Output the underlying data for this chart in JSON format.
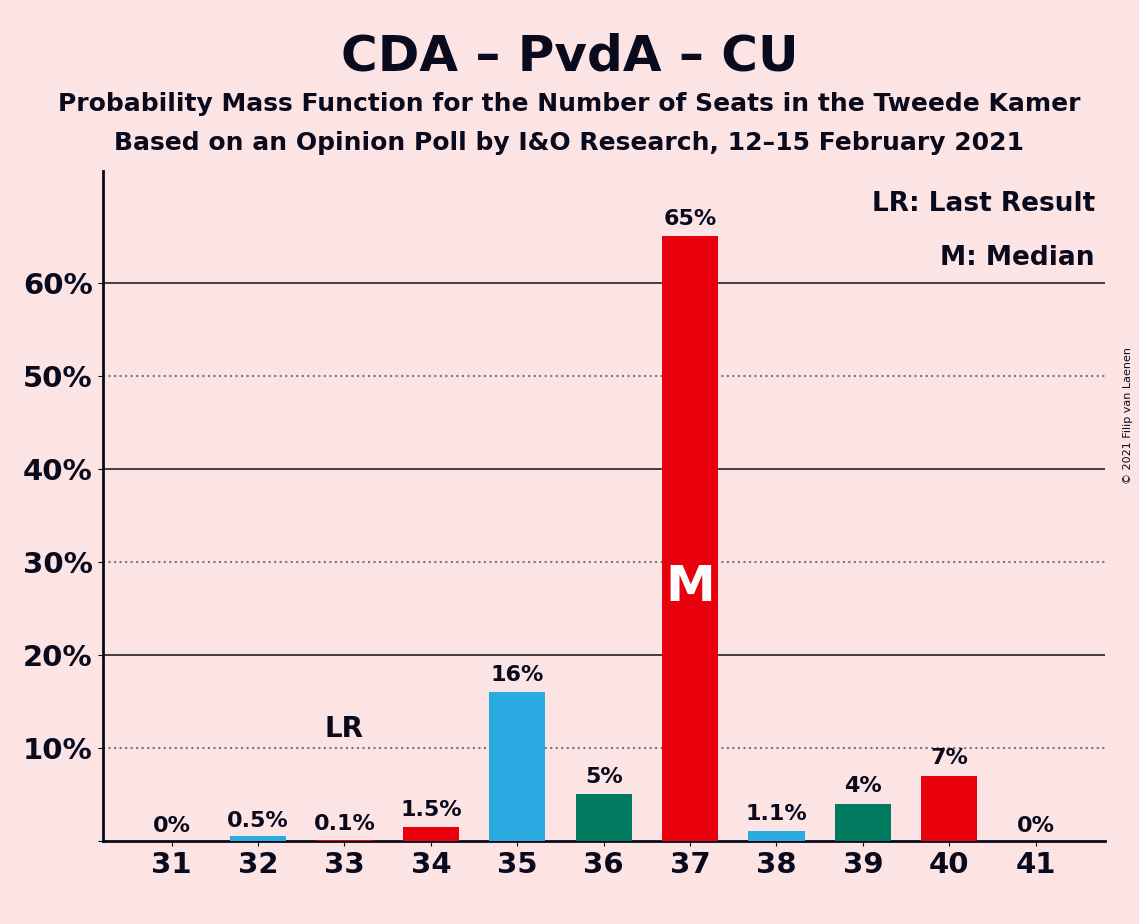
{
  "title": "CDA – PvdA – CU",
  "subtitle1": "Probability Mass Function for the Number of Seats in the Tweede Kamer",
  "subtitle2": "Based on an Opinion Poll by I&O Research, 12–15 February 2021",
  "copyright": "© 2021 Filip van Laenen",
  "seats": [
    31,
    32,
    33,
    34,
    35,
    36,
    37,
    38,
    39,
    40,
    41
  ],
  "probabilities": [
    0.0,
    0.5,
    0.1,
    1.5,
    16.0,
    5.0,
    65.0,
    1.1,
    4.0,
    7.0,
    0.0
  ],
  "bar_colors": [
    "#e8000d",
    "#29abe2",
    "#e8000d",
    "#e8000d",
    "#29abe2",
    "#007a5e",
    "#e8000d",
    "#29abe2",
    "#007a5e",
    "#e8000d",
    "#e8000d"
  ],
  "labels": [
    "0%",
    "0.5%",
    "0.1%",
    "1.5%",
    "16%",
    "5%",
    "65%",
    "1.1%",
    "4%",
    "7%",
    "0%"
  ],
  "median_seat": 37,
  "lr_seat": 33,
  "legend_lr": "LR: Last Result",
  "legend_m": "M: Median",
  "background_color": "#fce4e4",
  "ytick_positions": [
    0,
    10,
    20,
    30,
    40,
    50,
    60
  ],
  "ytick_labels": [
    "",
    "10%",
    "20%",
    "30%",
    "40%",
    "50%",
    "60%"
  ],
  "dotted_gridlines": [
    10,
    30,
    50
  ],
  "solid_gridlines": [
    20,
    40,
    60
  ],
  "ylim": [
    0,
    72
  ],
  "title_fontsize": 36,
  "subtitle_fontsize": 18,
  "bar_width": 0.65,
  "axis_color": "#0a0a1e",
  "grid_color": "#777777",
  "solid_grid_color": "#222222"
}
